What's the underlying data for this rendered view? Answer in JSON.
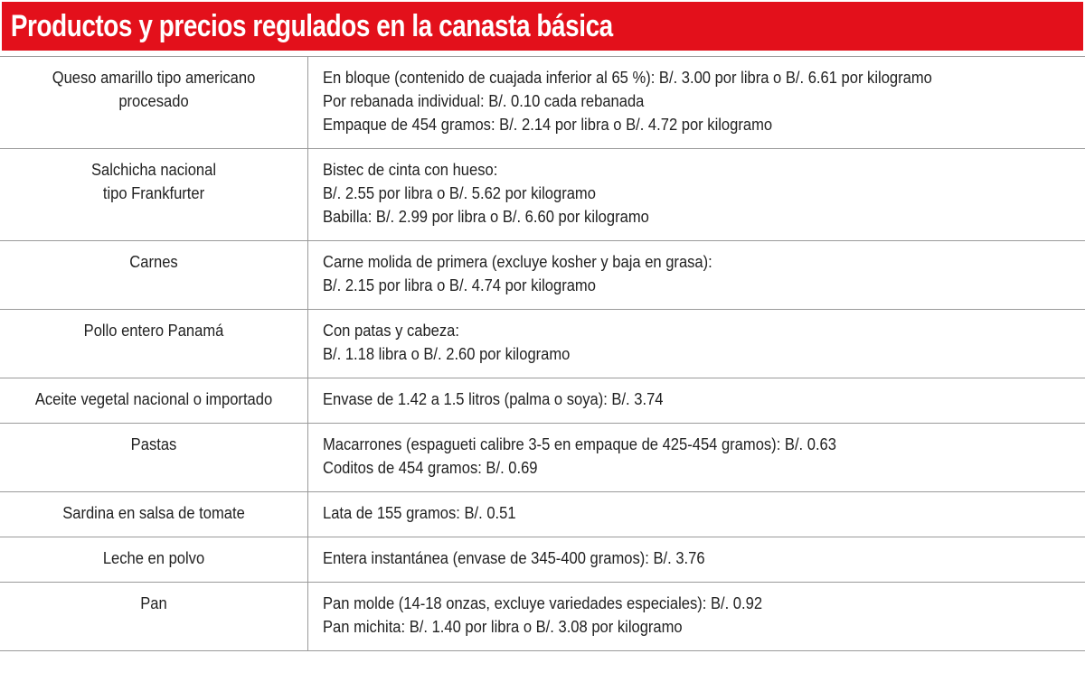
{
  "header": {
    "title": "Productos y precios regulados en la canasta básica"
  },
  "table": {
    "rows": [
      {
        "product": [
          "Queso amarillo tipo americano",
          "procesado"
        ],
        "prices": [
          "En bloque (contenido de cuajada inferior al 65 %): B/. 3.00 por libra o B/. 6.61 por kilogramo",
          "Por rebanada individual: B/. 0.10 cada rebanada",
          "Empaque de 454 gramos: B/. 2.14 por libra o B/. 4.72 por kilogramo"
        ]
      },
      {
        "product": [
          "Salchicha nacional",
          "tipo Frankfurter"
        ],
        "prices": [
          "Bistec de cinta con hueso:",
          "B/. 2.55 por libra o B/. 5.62 por kilogramo",
          "Babilla: B/. 2.99 por libra o B/. 6.60 por kilogramo"
        ]
      },
      {
        "product": [
          "Carnes"
        ],
        "prices": [
          "Carne molida de primera (excluye kosher y baja en grasa):",
          "B/. 2.15 por libra o B/. 4.74 por kilogramo"
        ]
      },
      {
        "product": [
          "Pollo entero Panamá"
        ],
        "prices": [
          "Con patas y cabeza:",
          "B/. 1.18 libra o B/. 2.60 por kilogramo"
        ]
      },
      {
        "product": [
          "Aceite vegetal nacional o importado"
        ],
        "prices": [
          "Envase de 1.42 a 1.5 litros (palma o soya): B/. 3.74"
        ]
      },
      {
        "product": [
          "Pastas"
        ],
        "prices": [
          "Macarrones (espagueti calibre 3-5 en empaque de 425-454 gramos): B/. 0.63",
          "Coditos de 454 gramos: B/. 0.69"
        ]
      },
      {
        "product": [
          "Sardina en salsa de tomate"
        ],
        "prices": [
          "Lata de 155 gramos: B/. 0.51"
        ]
      },
      {
        "product": [
          "Leche en polvo"
        ],
        "prices": [
          "Entera instantánea (envase de 345-400 gramos): B/. 3.76"
        ]
      },
      {
        "product": [
          "Pan"
        ],
        "prices": [
          "Pan molde (14-18 onzas, excluye variedades especiales): B/. 0.92",
          "Pan michita: B/. 1.40 por libra o B/. 3.08 por kilogramo"
        ]
      }
    ]
  }
}
